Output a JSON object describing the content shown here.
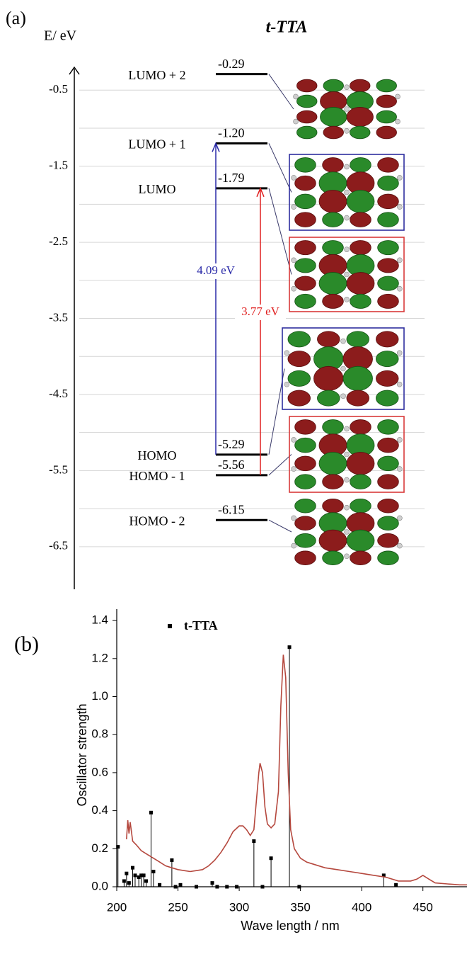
{
  "chart_data": [
    {
      "type": "level",
      "label": "(a)",
      "title": "t-TTA",
      "ylabel": "E/ eV",
      "categories": [
        "LUMO + 2",
        "LUMO + 1",
        "LUMO",
        "HOMO",
        "HOMO - 1",
        "HOMO - 2"
      ],
      "values": [
        -0.29,
        -1.2,
        -1.79,
        -5.29,
        -5.56,
        -6.15
      ],
      "value_labels": [
        "-0.29",
        "-1.20",
        "-1.79",
        "-5.29",
        "-5.56",
        "-6.15"
      ],
      "ylim": [
        -7.06,
        -0.2
      ],
      "yticks": [
        -0.5,
        -1.5,
        -2.5,
        -3.5,
        -4.5,
        -5.5,
        -6.5
      ],
      "minor_yticks": [
        -1,
        -2,
        -3,
        -4,
        -5,
        -6
      ],
      "grid": true,
      "level_color": "#000000",
      "box_colors": [
        null,
        "#2e2e9e",
        "#d83a3a",
        "#2e2e9e",
        "#d83a3a",
        null
      ],
      "transitions": [
        {
          "from": 3,
          "to": 1,
          "value_label": "4.09 eV",
          "color": "#2a2aa8"
        },
        {
          "from": 4,
          "to": 2,
          "value_label": "3.77 eV",
          "color": "#e02020"
        }
      ]
    },
    {
      "type": "stem",
      "label": "(b)",
      "xlabel": "Wave length / nm",
      "ylabel": "Oscillator strength",
      "xlim": [
        200,
        486
      ],
      "ylim": [
        0,
        1.46
      ],
      "xticks": [
        200,
        250,
        300,
        350,
        400,
        450
      ],
      "yticks": [
        {
          "value": 0,
          "label": "0.0"
        },
        0.2,
        0.4,
        0.6,
        0.8,
        {
          "value": 1,
          "label": "1.0"
        },
        1.2,
        1.4
      ],
      "legend": "upper left",
      "series": [
        {
          "name": "t-TTA",
          "type": "stem",
          "color": "#000000",
          "x": [
            201,
            206,
            208,
            210,
            213,
            215,
            218,
            220,
            222,
            224,
            228,
            230,
            235,
            245,
            248,
            252,
            265,
            278,
            282,
            290,
            298,
            312,
            319,
            326,
            341,
            349,
            418,
            428
          ],
          "values": [
            0.21,
            0.03,
            0.07,
            0.02,
            0.1,
            0.06,
            0.05,
            0.06,
            0.06,
            0.03,
            0.39,
            0.08,
            0.01,
            0.14,
            0.0,
            0.01,
            0.0,
            0.02,
            0.0,
            0.0,
            0.0,
            0.24,
            0.0,
            0.15,
            1.26,
            0.0,
            0.06,
            0.01
          ]
        },
        {
          "type": "line",
          "color": "#b5483e",
          "x": [
            208,
            209,
            210,
            211,
            213,
            216,
            220,
            225,
            230,
            235,
            240,
            245,
            250,
            255,
            260,
            265,
            270,
            275,
            280,
            285,
            290,
            295,
            300,
            303,
            306,
            309,
            312,
            314,
            316,
            317,
            319,
            321,
            323,
            326,
            329,
            332,
            334,
            336,
            338,
            340,
            342,
            345,
            350,
            355,
            360,
            370,
            380,
            390,
            400,
            410,
            420,
            430,
            440,
            445,
            450,
            455,
            460,
            470,
            480,
            486
          ],
          "values": [
            0.25,
            0.35,
            0.28,
            0.34,
            0.24,
            0.22,
            0.19,
            0.17,
            0.15,
            0.13,
            0.11,
            0.1,
            0.09,
            0.085,
            0.08,
            0.085,
            0.09,
            0.11,
            0.14,
            0.18,
            0.23,
            0.29,
            0.32,
            0.32,
            0.3,
            0.27,
            0.3,
            0.45,
            0.6,
            0.65,
            0.6,
            0.42,
            0.33,
            0.31,
            0.33,
            0.5,
            0.95,
            1.22,
            1.1,
            0.6,
            0.3,
            0.2,
            0.15,
            0.13,
            0.12,
            0.1,
            0.09,
            0.08,
            0.07,
            0.06,
            0.05,
            0.03,
            0.03,
            0.04,
            0.06,
            0.04,
            0.02,
            0.015,
            0.01,
            0.01
          ]
        }
      ]
    }
  ]
}
